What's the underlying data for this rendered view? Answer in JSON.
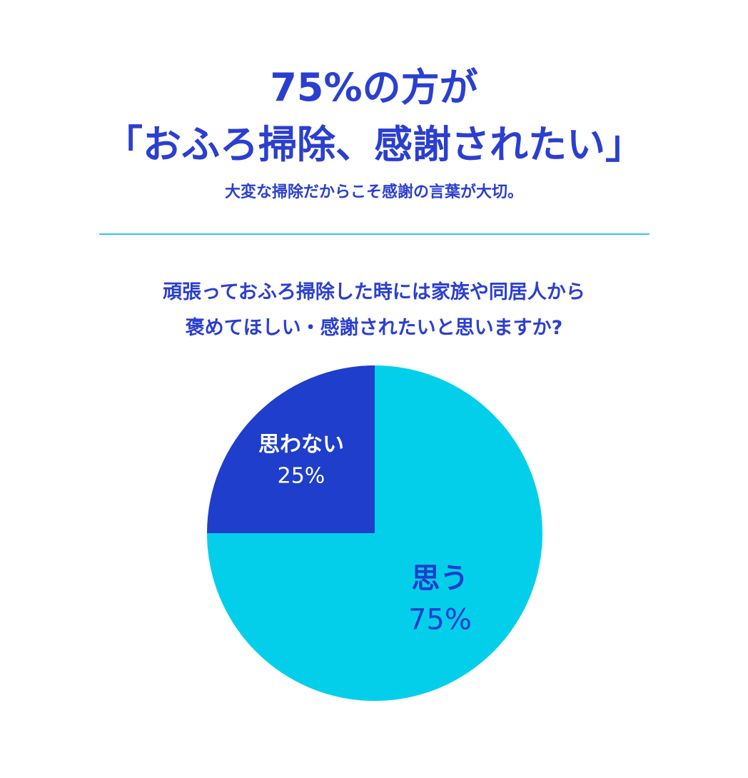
{
  "colors": {
    "title": "#2b3fcf",
    "dark_blue": "#1f3ecc",
    "cyan": "#04cfea",
    "divider": "#33c6e6",
    "white": "#ffffff"
  },
  "header": {
    "headline_line1": "75%の方が",
    "headline_line2": "「おふろ掃除、感謝されたい」",
    "subtitle": "大変な掃除だからこそ感謝の言葉が大切。"
  },
  "question": {
    "line1": "頑張っておふろ掃除した時には家族や同居人から",
    "line2": "褒めてほしい・感謝されたいと思いますか?"
  },
  "chart_data": {
    "type": "pie",
    "title": "",
    "slices": [
      {
        "label": "思う",
        "value": 75,
        "value_label": "75%",
        "color": "#04cfea",
        "label_color": "#1f3ecc"
      },
      {
        "label": "思わない",
        "value": 25,
        "value_label": "25%",
        "color": "#1f3ecc",
        "label_color": "#ffffff"
      }
    ]
  }
}
